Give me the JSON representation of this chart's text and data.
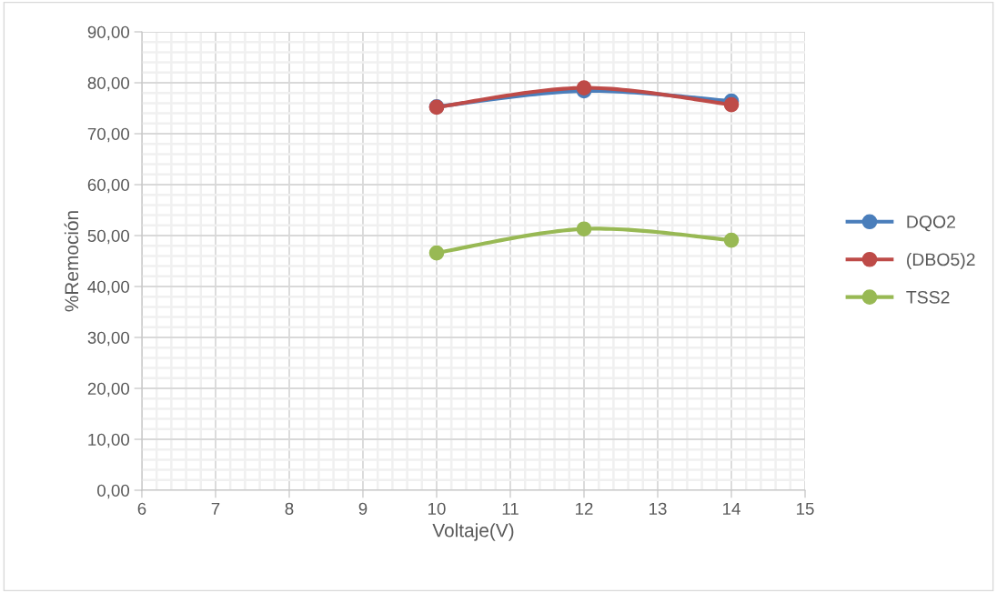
{
  "chart_data": {
    "type": "line",
    "xlabel": "Voltaje(V)",
    "ylabel": "%Remoción",
    "x": [
      10,
      12,
      14
    ],
    "series": [
      {
        "name": "DQO2",
        "color": "#4a7ebb",
        "values": [
          75.3,
          78.4,
          76.4
        ]
      },
      {
        "name": "(DBO5)2",
        "color": "#be4b48",
        "values": [
          75.2,
          79.0,
          75.7
        ]
      },
      {
        "name": "TSS2",
        "color": "#98b954",
        "values": [
          46.6,
          51.3,
          49.1
        ]
      }
    ],
    "xlim": [
      6,
      15
    ],
    "xticks": [
      6,
      7,
      8,
      9,
      10,
      11,
      12,
      13,
      14,
      15
    ],
    "ylim": [
      0,
      90
    ],
    "yticks": [
      {
        "value": 0,
        "label": "0,00"
      },
      {
        "value": 10,
        "label": "10,00"
      },
      {
        "value": 20,
        "label": "20,00"
      },
      {
        "value": 30,
        "label": "30,00"
      },
      {
        "value": 40,
        "label": "40,00"
      },
      {
        "value": 50,
        "label": "50,00"
      },
      {
        "value": 60,
        "label": "60,00"
      },
      {
        "value": 70,
        "label": "70,00"
      },
      {
        "value": 80,
        "label": "80,00"
      },
      {
        "value": 90,
        "label": "90,00"
      }
    ],
    "grid": true,
    "legend": "right",
    "marker": "circle",
    "line_style": "solid"
  }
}
